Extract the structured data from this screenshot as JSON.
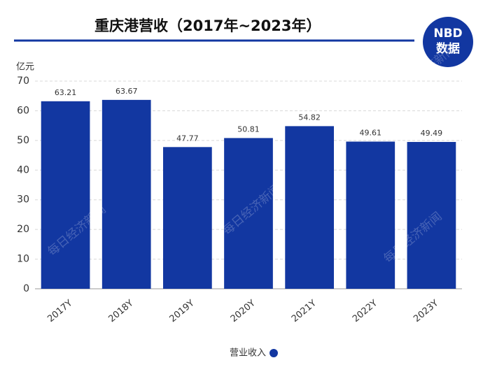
{
  "chart_data": {
    "type": "bar",
    "title": "重庆港营收（2017年~2023年）",
    "y_unit": "亿元",
    "categories": [
      "2017Y",
      "2018Y",
      "2019Y",
      "2020Y",
      "2021Y",
      "2022Y",
      "2023Y"
    ],
    "series": [
      {
        "name": "营业收入",
        "color": "#1237a1",
        "values": [
          63.21,
          63.67,
          47.77,
          50.81,
          54.82,
          49.61,
          49.49
        ]
      }
    ],
    "ylim": [
      0,
      70
    ],
    "yticks": [
      0,
      10,
      20,
      30,
      40,
      50,
      60,
      70
    ],
    "grid": true,
    "legend": "bottom"
  },
  "logo": {
    "top": "NBD",
    "bottom": "数据"
  },
  "watermark": "每日经济新闻"
}
